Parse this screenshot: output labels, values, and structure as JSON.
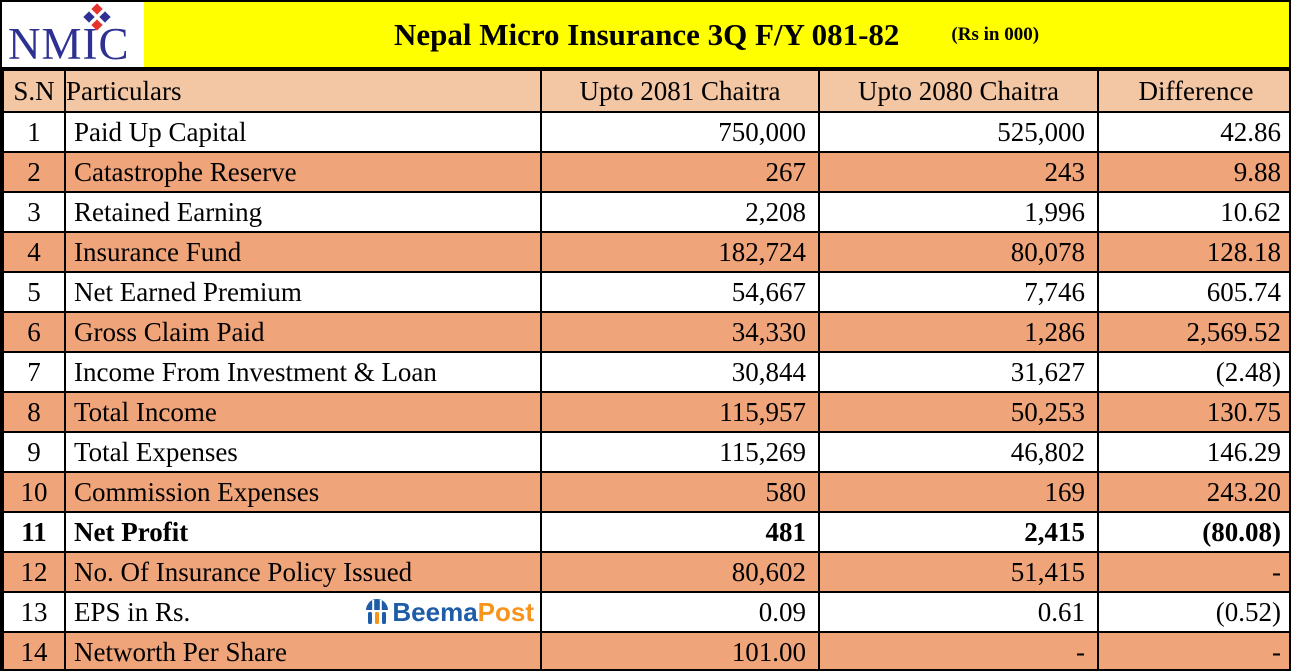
{
  "header": {
    "logo": "NMIC",
    "title": "Nepal Micro Insurance 3Q F/Y 081-82",
    "unit_note": "(Rs in 000)"
  },
  "table": {
    "columns": [
      "S.N",
      "Particulars",
      "Upto 2081 Chaitra",
      "Upto 2080 Chaitra",
      "Difference"
    ],
    "rows": [
      {
        "cells": [
          "1",
          "Paid Up Capital",
          "750,000",
          "525,000",
          "42.86"
        ],
        "bold": false,
        "logo": false
      },
      {
        "cells": [
          "2",
          "Catastrophe Reserve",
          "267",
          "243",
          "9.88"
        ],
        "bold": false,
        "logo": false
      },
      {
        "cells": [
          "3",
          "Retained Earning",
          "2,208",
          "1,996",
          "10.62"
        ],
        "bold": false,
        "logo": false
      },
      {
        "cells": [
          "4",
          "Insurance Fund",
          "182,724",
          "80,078",
          "128.18"
        ],
        "bold": false,
        "logo": false
      },
      {
        "cells": [
          "5",
          "Net Earned Premium",
          "54,667",
          "7,746",
          "605.74"
        ],
        "bold": false,
        "logo": false
      },
      {
        "cells": [
          "6",
          "Gross Claim Paid",
          "34,330",
          "1,286",
          "2,569.52"
        ],
        "bold": false,
        "logo": false
      },
      {
        "cells": [
          "7",
          "Income From Investment & Loan",
          "30,844",
          "31,627",
          "(2.48)"
        ],
        "bold": false,
        "logo": false
      },
      {
        "cells": [
          "8",
          "Total Income",
          "115,957",
          "50,253",
          "130.75"
        ],
        "bold": false,
        "logo": false
      },
      {
        "cells": [
          "9",
          "Total Expenses",
          "115,269",
          "46,802",
          "146.29"
        ],
        "bold": false,
        "logo": false
      },
      {
        "cells": [
          "10",
          "Commission Expenses",
          "580",
          "169",
          "243.20"
        ],
        "bold": false,
        "logo": false
      },
      {
        "cells": [
          "11",
          "Net Profit",
          "481",
          "2,415",
          "(80.08)"
        ],
        "bold": true,
        "logo": false
      },
      {
        "cells": [
          "12",
          "No. Of Insurance Policy Issued",
          "80,602",
          "51,415",
          "-"
        ],
        "bold": false,
        "logo": false
      },
      {
        "cells": [
          "13",
          "EPS in Rs.",
          "0.09",
          "0.61",
          "(0.52)"
        ],
        "bold": false,
        "logo": true
      },
      {
        "cells": [
          "14",
          "Networth Per Share",
          "101.00",
          "-",
          "-"
        ],
        "bold": false,
        "logo": false
      }
    ]
  },
  "beemapost": {
    "beema": "Beema",
    "post": "Post"
  },
  "colors": {
    "title_band_yellow": "#FFFF00",
    "header_row_peach": "#F3C6A4",
    "row_salmon": "#F0A47A",
    "nmic_blue": "#2E3192",
    "nmic_red": "#E5322D",
    "beema_blue": "#1E5CA8",
    "beema_orange": "#F7941D"
  }
}
